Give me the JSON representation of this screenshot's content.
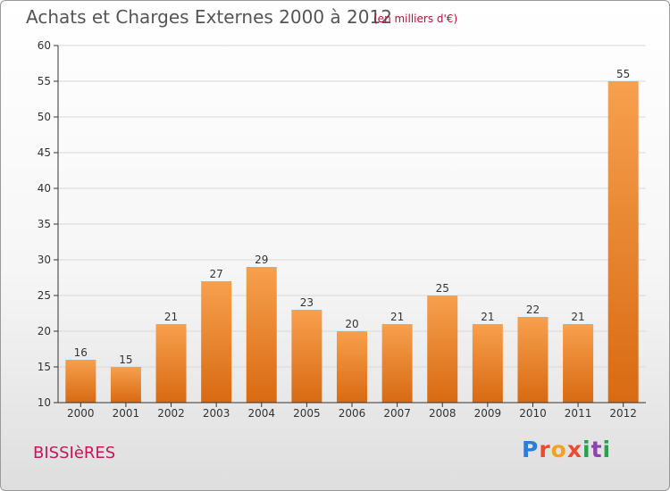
{
  "header": {
    "title": "Achats et Charges Externes 2000 à 2012",
    "subtitle": "(en milliers d'€)"
  },
  "footer": {
    "town": "BISSIèRES",
    "brand": "Proxiti"
  },
  "colors": {
    "bar_light": "#f7a04e",
    "bar_dark": "#d86a12",
    "grid": "#d8d8d8",
    "axis": "#333333"
  },
  "chart_data": {
    "type": "bar",
    "categories": [
      "2000",
      "2001",
      "2002",
      "2003",
      "2004",
      "2005",
      "2006",
      "2007",
      "2008",
      "2009",
      "2010",
      "2011",
      "2012"
    ],
    "values": [
      16,
      15,
      21,
      27,
      29,
      23,
      20,
      21,
      25,
      21,
      22,
      21,
      55
    ],
    "title": "Achats et Charges Externes 2000 à 2012",
    "subtitle": "(en milliers d'€)",
    "ylim": [
      10,
      60
    ],
    "yticks": [
      10,
      15,
      20,
      25,
      30,
      35,
      40,
      45,
      50,
      55,
      60
    ],
    "grid": true
  }
}
